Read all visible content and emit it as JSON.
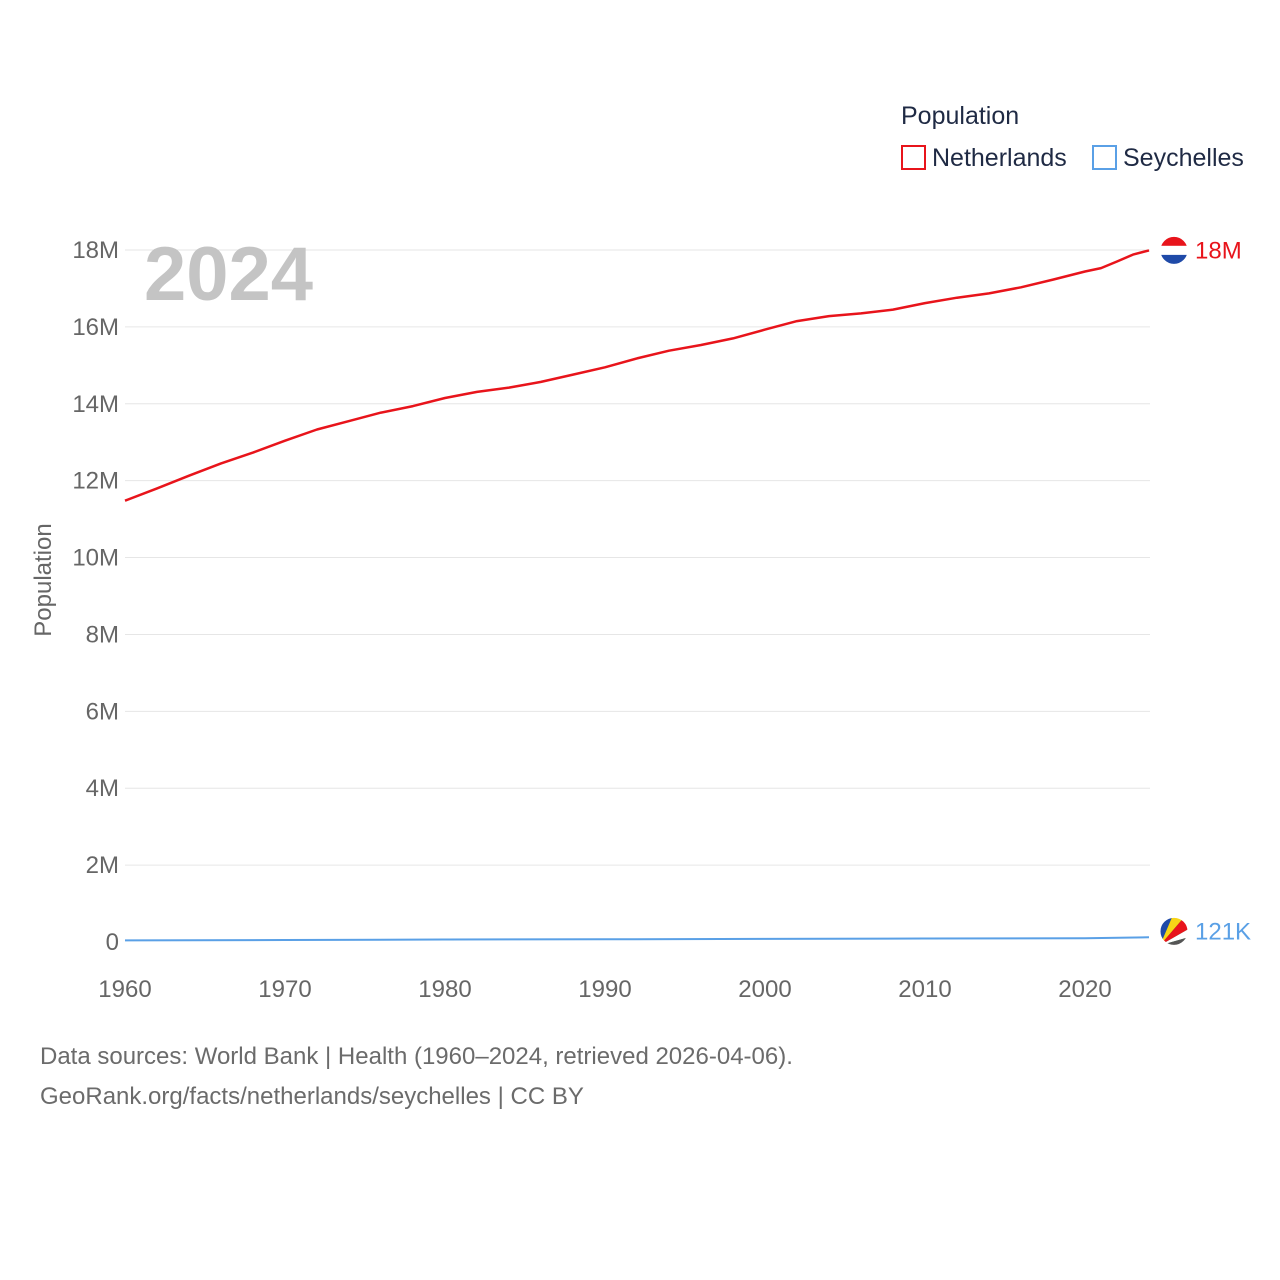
{
  "chart_data": {
    "type": "line",
    "title": "Population",
    "year_label": "2024",
    "ylabel": "Population",
    "xlabel": "",
    "xlim": [
      1960,
      2024
    ],
    "ylim": [
      0,
      18000000
    ],
    "grid": true,
    "legend_placement": "top-right",
    "x_ticks": [
      1960,
      1970,
      1980,
      1990,
      2000,
      2010,
      2020
    ],
    "x_tick_labels": [
      "1960",
      "1970",
      "1980",
      "1990",
      "2000",
      "2010",
      "2020"
    ],
    "y_ticks": [
      0,
      2000000,
      4000000,
      6000000,
      8000000,
      10000000,
      12000000,
      14000000,
      16000000,
      18000000
    ],
    "y_tick_labels": [
      "0",
      "2M",
      "4M",
      "6M",
      "8M",
      "10M",
      "12M",
      "14M",
      "16M",
      "18M"
    ],
    "series": [
      {
        "name": "Netherlands",
        "color": "#e8141b",
        "end_label": "18M",
        "flag_icon": "netherlands-flag-icon",
        "x": [
          1960,
          1962,
          1964,
          1966,
          1968,
          1970,
          1972,
          1974,
          1976,
          1978,
          1980,
          1982,
          1984,
          1986,
          1988,
          1990,
          1992,
          1994,
          1996,
          1998,
          2000,
          2002,
          2004,
          2006,
          2008,
          2010,
          2012,
          2014,
          2016,
          2018,
          2020,
          2021,
          2022,
          2023,
          2024
        ],
        "values": [
          11480000,
          11800000,
          12130000,
          12450000,
          12730000,
          13040000,
          13330000,
          13550000,
          13770000,
          13940000,
          14150000,
          14310000,
          14420000,
          14570000,
          14760000,
          14950000,
          15180000,
          15380000,
          15530000,
          15700000,
          15930000,
          16150000,
          16280000,
          16350000,
          16450000,
          16620000,
          16760000,
          16870000,
          17030000,
          17230000,
          17440000,
          17530000,
          17700000,
          17880000,
          17990000
        ]
      },
      {
        "name": "Seychelles",
        "color": "#5aa0e6",
        "end_label": "121K",
        "flag_icon": "seychelles-flag-icon",
        "x": [
          1960,
          1970,
          1980,
          1990,
          2000,
          2010,
          2020,
          2024
        ],
        "values": [
          41700,
          52400,
          65300,
          70400,
          81100,
          89800,
          98500,
          121000
        ]
      }
    ]
  },
  "footer": {
    "sources": "Data sources: World Bank | Health (1960–2024, retrieved 2026-04-06).",
    "attribution": "GeoRank.org/facts/netherlands/seychelles | CC BY"
  }
}
